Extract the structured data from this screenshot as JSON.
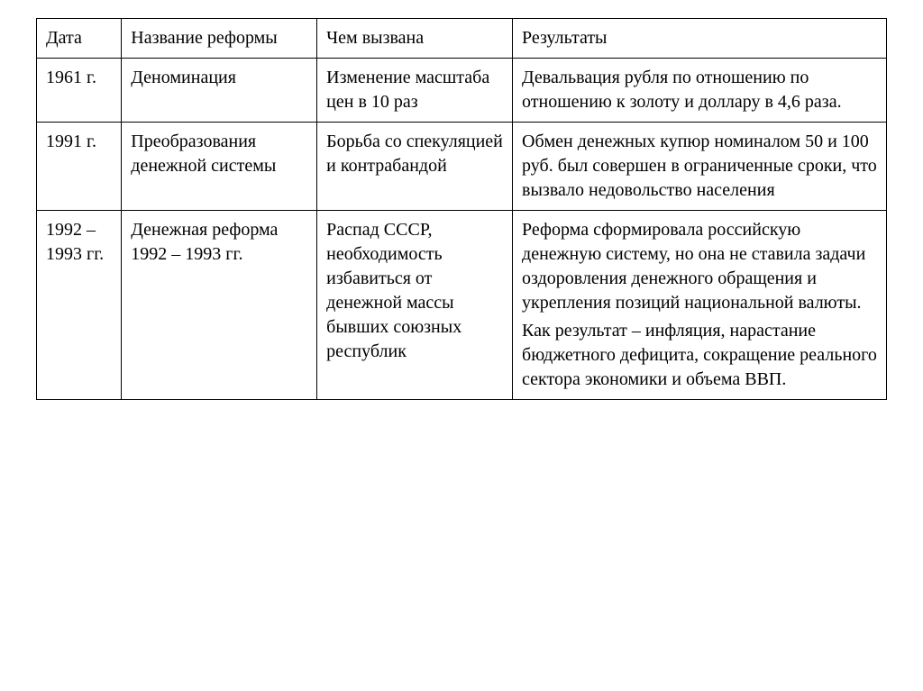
{
  "table": {
    "columns": [
      {
        "key": "date",
        "label": "Дата",
        "width": "10%"
      },
      {
        "key": "name",
        "label": "Название реформы",
        "width": "23%"
      },
      {
        "key": "cause",
        "label": "Чем вызвана",
        "width": "23%"
      },
      {
        "key": "result",
        "label": "Результаты",
        "width": "44%"
      }
    ],
    "rows": [
      {
        "date": "1961 г.",
        "name": "Деноминация",
        "cause": "Изменение масштаба цен в 10 раз",
        "result_p1": "Девальвация рубля по отношению по отношению к золоту и доллару в 4,6 раза."
      },
      {
        "date": "1991 г.",
        "name": "Преобразования денежной системы",
        "cause": "Борьба со спекуляцией и контрабандой",
        "result_p1": "Обмен денежных купюр номиналом 50 и 100 руб. был совершен в ограниченные сроки, что вызвало недовольство населения"
      },
      {
        "date": "1992 – 1993 гг.",
        "name": "Денежная реформа 1992 – 1993 гг.",
        "cause": "Распад СССР, необходимость избавиться от денежной массы бывших союзных республик",
        "result_p1": "Реформа сформировала российскую денежную систему, но она не ставила задачи оздоровления денежного обращения и укрепления позиций национальной валюты.",
        "result_p2": "Как результат – инфляция, нарастание бюджетного дефицита, сокращение реального сектора экономики и объема ВВП."
      }
    ],
    "border_color": "#000000",
    "background_color": "#ffffff",
    "font_family": "Times New Roman",
    "font_size_pt": 15,
    "text_color": "#000000"
  }
}
